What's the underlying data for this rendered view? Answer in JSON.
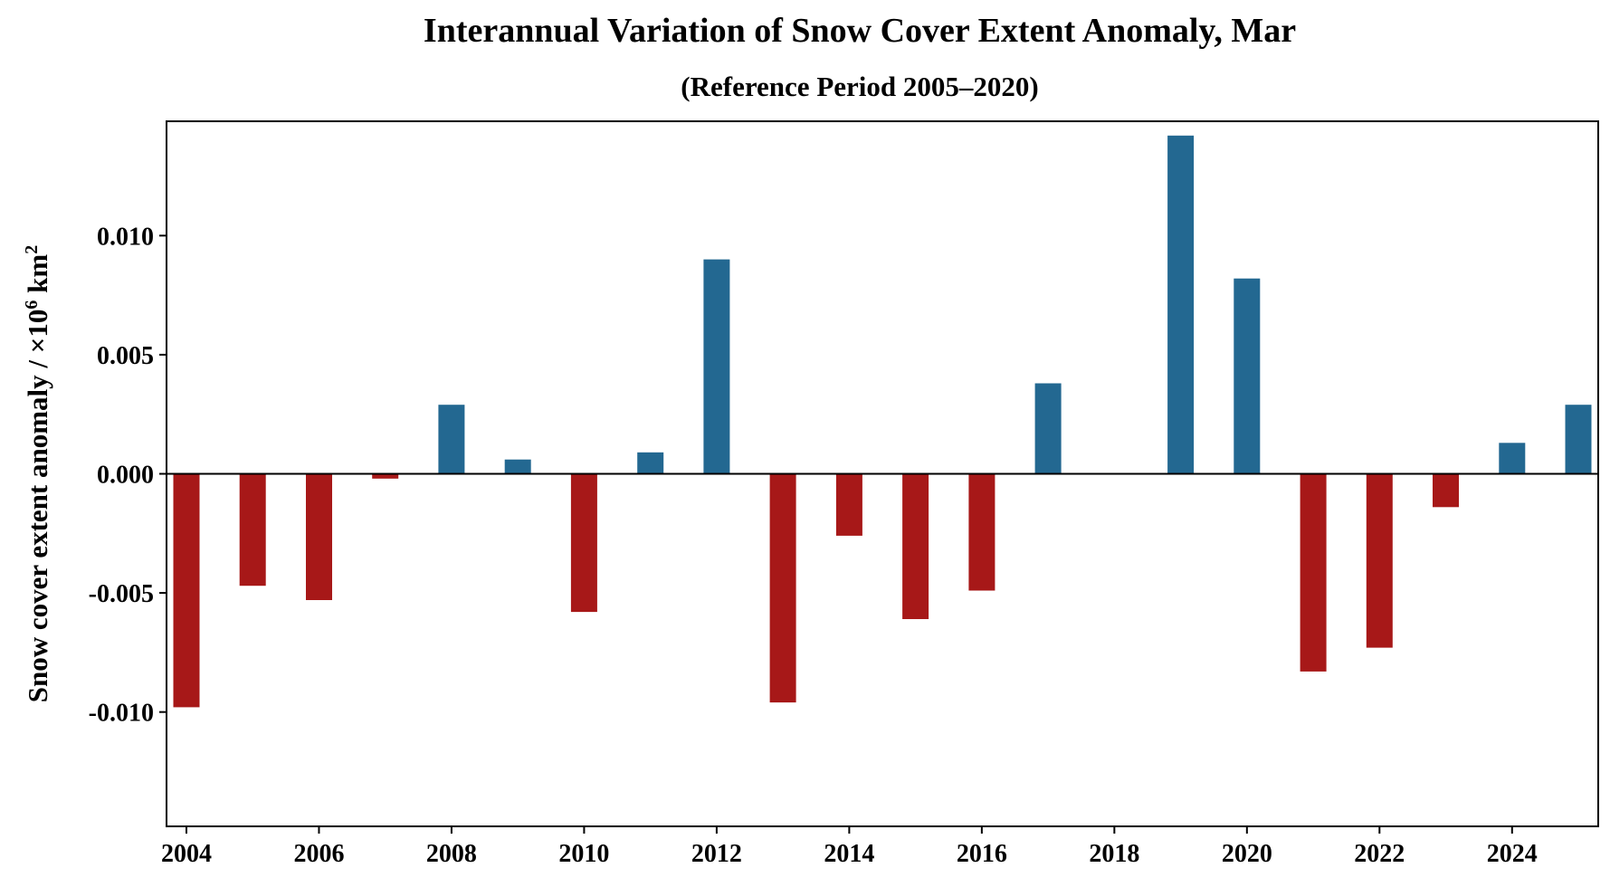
{
  "chart_data": {
    "type": "bar",
    "title": "Interannual Variation of Snow Cover Extent Anomaly, Mar",
    "subtitle": "(Reference Period 2005–2020)",
    "xlabel": "",
    "ylabel": "Snow cover extent anomaly / ×10⁶ km²",
    "ylabel_parts": {
      "text": "Snow cover extent anomaly / ×10",
      "exp1": "6",
      "unit": " km",
      "exp2": "2"
    },
    "categories": [
      2004,
      2005,
      2006,
      2007,
      2008,
      2009,
      2010,
      2011,
      2012,
      2013,
      2014,
      2015,
      2016,
      2017,
      2018,
      2019,
      2020,
      2021,
      2022,
      2023,
      2024,
      2025
    ],
    "values": [
      -0.0098,
      -0.0047,
      -0.0053,
      -0.0002,
      0.0029,
      0.0006,
      -0.0058,
      0.0009,
      0.009,
      -0.0096,
      -0.0026,
      -0.0061,
      -0.0049,
      0.0038,
      0.0,
      0.0142,
      0.0082,
      -0.0083,
      -0.0073,
      -0.0014,
      0.0013,
      0.0029
    ],
    "xlim": [
      2003.7,
      2025.3
    ],
    "ylim": [
      -0.0148,
      0.0148
    ],
    "xticks": [
      2004,
      2006,
      2008,
      2010,
      2012,
      2014,
      2016,
      2018,
      2020,
      2022,
      2024
    ],
    "xtick_labels": [
      "2004",
      "2006",
      "2008",
      "2010",
      "2012",
      "2014",
      "2016",
      "2018",
      "2020",
      "2022",
      "2024"
    ],
    "yticks": [
      -0.01,
      -0.005,
      0.0,
      0.005,
      0.01
    ],
    "ytick_labels": [
      "-0.010",
      "-0.005",
      "0.000",
      "0.005",
      "0.010"
    ],
    "colors": {
      "positive": "#236891",
      "negative": "#a71818",
      "zero_line": "#000000"
    },
    "grid": false
  }
}
